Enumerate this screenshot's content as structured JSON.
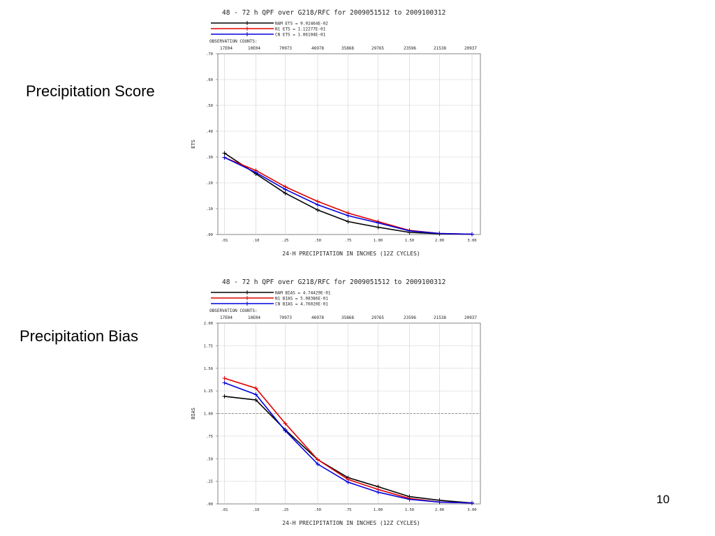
{
  "slide": {
    "score_label": "Precipitation Score",
    "bias_label": "Precipitation Bias",
    "page_number": "10"
  },
  "chart_data": [
    {
      "type": "line",
      "title": "48 - 72 h QPF over G218/RFC for 2009051512 to 2009100312",
      "ylabel": "ETS",
      "xlabel": "24-H PRECIPITATION IN INCHES (12Z CYCLES)",
      "categories": [
        ".01",
        ".10",
        ".25",
        ".50",
        ".75",
        "1.00",
        "1.50",
        "2.00",
        "3.00"
      ],
      "observation_counts_label": "OBSERVATION COUNTS:",
      "observation_counts": [
        "17E04",
        "10E04",
        "70973",
        "46978",
        "35868",
        "29765",
        "23596",
        "21538",
        "20937"
      ],
      "ylim": [
        0,
        0.7
      ],
      "yticks": [
        ".00",
        ".10",
        ".20",
        ".30",
        ".40",
        ".50",
        ".60",
        ".70"
      ],
      "grid": true,
      "legend_position": "top-left",
      "series": [
        {
          "name": "NAM ETS = 9.92464E-02",
          "color": "#000000",
          "values": [
            0.315,
            0.235,
            0.16,
            0.095,
            0.05,
            0.028,
            0.008,
            0.003,
            0.001
          ]
        },
        {
          "name": "N1 ETS = 1.12277E-01",
          "color": "#e00000",
          "values": [
            0.298,
            0.248,
            0.185,
            0.128,
            0.083,
            0.05,
            0.016,
            0.004,
            0.001
          ]
        },
        {
          "name": "CN ETS = 1.06104E-01",
          "color": "#0000dd",
          "values": [
            0.298,
            0.24,
            0.175,
            0.115,
            0.073,
            0.045,
            0.014,
            0.004,
            0.001
          ]
        }
      ]
    },
    {
      "type": "line",
      "title": "48 - 72 h QPF over G218/RFC for 2009051512 to 2009100312",
      "ylabel": "BIAS",
      "xlabel": "24-H PRECIPITATION IN INCHES (12Z CYCLES)",
      "categories": [
        ".01",
        ".10",
        ".25",
        ".50",
        ".75",
        "1.00",
        "1.50",
        "2.00",
        "3.00"
      ],
      "observation_counts_label": "OBSERVATION COUNTS:",
      "observation_counts": [
        "17E04",
        "10E04",
        "70973",
        "46978",
        "35868",
        "29765",
        "23596",
        "21538",
        "20937"
      ],
      "ylim": [
        0,
        2
      ],
      "yticks": [
        ".00",
        ".25",
        ".50",
        ".75",
        "1.00",
        "1.25",
        "1.50",
        "1.75",
        "2.00"
      ],
      "reference_line": 1.0,
      "grid": true,
      "legend_position": "top-left",
      "series": [
        {
          "name": "NAM BIAS = 4.74429E-01",
          "color": "#000000",
          "values": [
            1.19,
            1.15,
            0.82,
            0.49,
            0.29,
            0.19,
            0.08,
            0.04,
            0.01
          ]
        },
        {
          "name": "N1 BIAS = 5.08386E-01",
          "color": "#e00000",
          "values": [
            1.39,
            1.28,
            0.89,
            0.49,
            0.27,
            0.16,
            0.06,
            0.02,
            0.01
          ]
        },
        {
          "name": "CN BIAS = 4.76020E-01",
          "color": "#0000dd",
          "values": [
            1.34,
            1.21,
            0.81,
            0.44,
            0.24,
            0.13,
            0.05,
            0.02,
            0.01
          ]
        }
      ]
    }
  ]
}
